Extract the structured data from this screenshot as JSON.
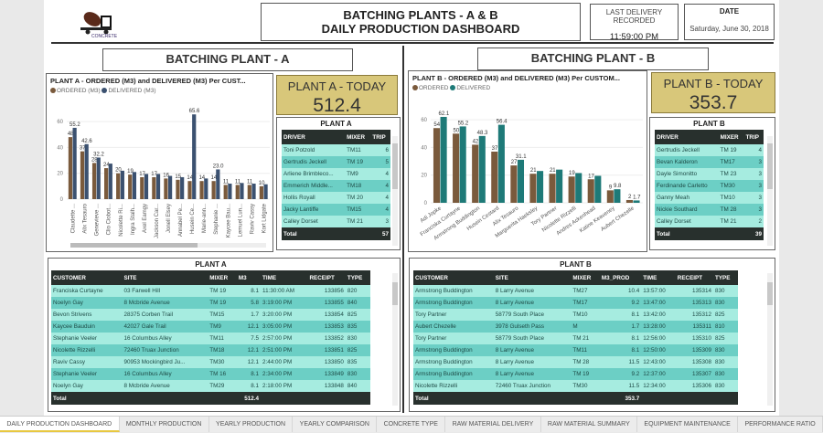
{
  "header": {
    "title_line1": "BATCHING PLANTS - A & B",
    "title_line2": "DAILY PRODUCTION DASHBOARD",
    "logo_text": "CONCRETE",
    "last_delivery_label": "LAST DELIVERY RECORDED",
    "last_delivery_time": "11:59:00 PM",
    "date_label": "DATE",
    "date_value": "Saturday, June 30, 2018"
  },
  "plant_a": {
    "section_title": "BATCHING PLANT - A",
    "chart_title": "PLANT A - ORDERED (M3) and DELIVERED (M3) Per CUST...",
    "legend": [
      "ORDERED (M3)",
      "DELIVERED (M3)"
    ],
    "today_label": "PLANT A - TODAY",
    "today_value": "512.4",
    "drivers": {
      "title": "PLANT A",
      "columns": [
        "DRIVER",
        "MIXER",
        "TRIP"
      ],
      "rows": [
        [
          "Toni Potzold",
          "TM11",
          "6"
        ],
        [
          "Gertrudis Jeckell",
          "TM 19",
          "5"
        ],
        [
          "Arliene Brimbleco...",
          "TM9",
          "4"
        ],
        [
          "Emmerich Middle...",
          "TM18",
          "4"
        ],
        [
          "Hollis Royall",
          "TM 20",
          "4"
        ],
        [
          "Jacky Lantiffe",
          "TM15",
          "4"
        ],
        [
          "Calley Dorset",
          "TM 21",
          "3"
        ]
      ],
      "total_label": "Total",
      "total": "57"
    },
    "deliveries": {
      "title": "PLANT A",
      "columns": [
        "CUSTOMER",
        "SITE",
        "MIXER",
        "M3",
        "TIME",
        "RECEIPT",
        "TYPE"
      ],
      "rows": [
        [
          "Franciska Curtayne",
          "03 Farwell Hill",
          "TM 19",
          "8.1",
          "11:30:00 AM",
          "133856",
          "820"
        ],
        [
          "Noelyn Gay",
          "8 Mcbride Avenue",
          "TM 19",
          "5.8",
          "3:19:00 PM",
          "133855",
          "840"
        ],
        [
          "Bevon Strivens",
          "28375 Corben Trail",
          "TM15",
          "1.7",
          "3:20:00 PM",
          "133854",
          "825"
        ],
        [
          "Kaycee Bauduin",
          "42027 Gale Trail",
          "TM9",
          "12.1",
          "3:05:00 PM",
          "133853",
          "835"
        ],
        [
          "Stephanie Veeler",
          "16 Columbus Alley",
          "TM11",
          "7.5",
          "2:57:00 PM",
          "133852",
          "830"
        ],
        [
          "Nicolette Rizzelli",
          "72460 Truax Junction",
          "TM18",
          "12.1",
          "2:51:00 PM",
          "133851",
          "825"
        ],
        [
          "Raviv Cassy",
          "90953 Mockingbird Ju...",
          "TM30",
          "12.1",
          "2:44:00 PM",
          "133850",
          "835"
        ],
        [
          "Stephanie Veeler",
          "16 Columbus Alley",
          "TM 16",
          "8.1",
          "2:34:00 PM",
          "133849",
          "830"
        ],
        [
          "Noelyn Gay",
          "8 Mcbride Avenue",
          "TM29",
          "8.1",
          "2:18:00 PM",
          "133848",
          "840"
        ]
      ],
      "total_label": "Total",
      "total": "512.4"
    }
  },
  "plant_b": {
    "section_title": "BATCHING PLANT - B",
    "chart_title": "PLANT B - ORDERED (M3) and DELIVERED (M3) Per CUSTOM...",
    "legend": [
      "ORDERED",
      "DELIVERED"
    ],
    "today_label": "PLANT B - TODAY",
    "today_value": "353.7",
    "drivers": {
      "title": "PLANT B",
      "columns": [
        "DRIVER",
        "MIXER",
        "TRIP"
      ],
      "rows": [
        [
          "Gertrudis Jeckell",
          "TM 19",
          "4"
        ],
        [
          "Bevan Kalderon",
          "TM17",
          "3"
        ],
        [
          "Dayle Simonitto",
          "TM 23",
          "3"
        ],
        [
          "Ferdinande Carletto",
          "TM30",
          "3"
        ],
        [
          "Ganny Meah",
          "TM10",
          "3"
        ],
        [
          "Nickie Southard",
          "TM 28",
          "3"
        ],
        [
          "Calley Dorset",
          "TM 21",
          "2"
        ]
      ],
      "total_label": "Total",
      "total": "39"
    },
    "deliveries": {
      "title": "PLANT B",
      "columns": [
        "CUSTOMER",
        "SITE",
        "MIXER",
        "M3_PROD",
        "TIME",
        "RECEIPT",
        "TYPE"
      ],
      "rows": [
        [
          "Armstrong Buddington",
          "8 Larry Avenue",
          "TM27",
          "10.4",
          "13:57:00",
          "135314",
          "830"
        ],
        [
          "Armstrong Buddington",
          "8 Larry Avenue",
          "TM17",
          "9.2",
          "13:47:00",
          "135313",
          "830"
        ],
        [
          "Tory Partner",
          "58779 South Place",
          "TM10",
          "8.1",
          "13:42:00",
          "135312",
          "825"
        ],
        [
          "Aubert Chezelle",
          "3978 Gulseth Pass",
          "M",
          "1.7",
          "13:28:00",
          "135311",
          "810"
        ],
        [
          "Tory Partner",
          "58779 South Place",
          "TM 21",
          "8.1",
          "12:56:00",
          "135310",
          "825"
        ],
        [
          "Armstrong Buddington",
          "8 Larry Avenue",
          "TM11",
          "8.1",
          "12:50:00",
          "135309",
          "830"
        ],
        [
          "Armstrong Buddington",
          "8 Larry Avenue",
          "TM 28",
          "11.5",
          "12:43:00",
          "135308",
          "830"
        ],
        [
          "Armstrong Buddington",
          "8 Larry Avenue",
          "TM 19",
          "9.2",
          "12:37:00",
          "135307",
          "830"
        ],
        [
          "Nicolette Rizzelli",
          "72460 Truax Junction",
          "TM30",
          "11.5",
          "12:34:00",
          "135306",
          "830"
        ]
      ],
      "total_label": "Total",
      "total": "353.7"
    }
  },
  "tabs": [
    "DAILY PRODUCTION DASHBOARD",
    "MONTHLY PRODUCTION",
    "YEARLY PRODUCTION",
    "YEARLY COMPARISON",
    "CONCRETE TYPE",
    "RAW MATERIAL DELIVERY",
    "RAW MATERIAL SUMMARY",
    "EQUIPMENT MAINTENANCE",
    "PERFORMANCE RATIO"
  ],
  "active_tab": "DAILY PRODUCTION DASHBOARD",
  "colors": {
    "ordered": "#7a5a3c",
    "delivered_a": "#3b5170",
    "delivered_b": "#1e7a78",
    "today_bg": "#d8c77a",
    "table_header": "#28302d",
    "row_light": "#a6ece0",
    "row_dark": "#6ccfc5"
  },
  "chart_data": [
    {
      "type": "bar",
      "title": "PLANT A - ORDERED (M3) and DELIVERED (M3) Per CUST...",
      "ylim": [
        0,
        70
      ],
      "yticks": [
        0,
        20,
        40,
        60
      ],
      "grid": true,
      "legend": "top-left",
      "categories": [
        "Claudette ...",
        "Alix Tesauro",
        "Genevieve ...",
        "Clio Ciobot...",
        "Nicolette Ri...",
        "Ingra Stalh...",
        "Axel Eamgy",
        "Jackson Car...",
        "Jonell Elsey",
        "Annabel Pe...",
        "Husein Ce...",
        "Marie-ann...",
        "Stephanie ...",
        "Kaycee Bau...",
        "Lemuel Lun...",
        "Raviv Cassy",
        "Kort Lidgate"
      ],
      "series": [
        {
          "name": "ORDERED (M3)",
          "values": [
            48,
            37,
            28,
            24,
            20,
            19,
            17,
            17,
            16,
            15,
            14,
            14,
            14,
            11,
            11,
            11,
            10
          ],
          "labels": [
            "48",
            "37",
            "28",
            "24",
            "20",
            "19",
            "17",
            "17",
            "16",
            "15",
            "14",
            "14",
            "14",
            "11",
            "11",
            "11",
            "10"
          ]
        },
        {
          "name": "DELIVERED (M3)",
          "values": [
            55.2,
            42.6,
            32.2,
            27.5,
            22,
            21,
            19.5,
            19.5,
            18,
            17,
            65.6,
            16,
            23.0,
            12,
            12.5,
            12,
            11.5
          ],
          "labels": [
            "55.2",
            "42.6",
            "32.2",
            "",
            "",
            "",
            "",
            "",
            "",
            "",
            "65.6",
            "",
            "23.0",
            "",
            "",
            "",
            ""
          ]
        }
      ]
    },
    {
      "type": "bar",
      "title": "PLANT B - ORDERED (M3) and DELIVERED (M3) Per CUSTOM...",
      "ylim": [
        0,
        70
      ],
      "yticks": [
        0,
        20,
        40,
        60
      ],
      "grid": true,
      "legend": "top-left",
      "categories": [
        "Adi Jopke",
        "Franciska Curtayne",
        "Armstrong Buddington",
        "Husein Cestard",
        "Alix Tesauro",
        "Marguerita Haeksley",
        "Tory Partner",
        "Nicolette Rizzelli",
        "Andres Ackenhead",
        "Katine Keaveney",
        "Aubert Chezelle"
      ],
      "series": [
        {
          "name": "ORDERED",
          "values": [
            54,
            50,
            42,
            37,
            27,
            21,
            21,
            19,
            17,
            9,
            2
          ],
          "labels": [
            "54",
            "50",
            "42",
            "37",
            "27",
            "21",
            "21",
            "19",
            "17",
            "9",
            "2"
          ]
        },
        {
          "name": "DELIVERED",
          "values": [
            62.1,
            55.2,
            48.3,
            56.4,
            31.1,
            23,
            24,
            21.5,
            19.5,
            9.8,
            1.7
          ],
          "labels": [
            "62.1",
            "55.2",
            "48.3",
            "56.4",
            "31.1",
            "",
            "",
            "",
            "",
            "9.8",
            "1.7"
          ]
        }
      ]
    }
  ]
}
